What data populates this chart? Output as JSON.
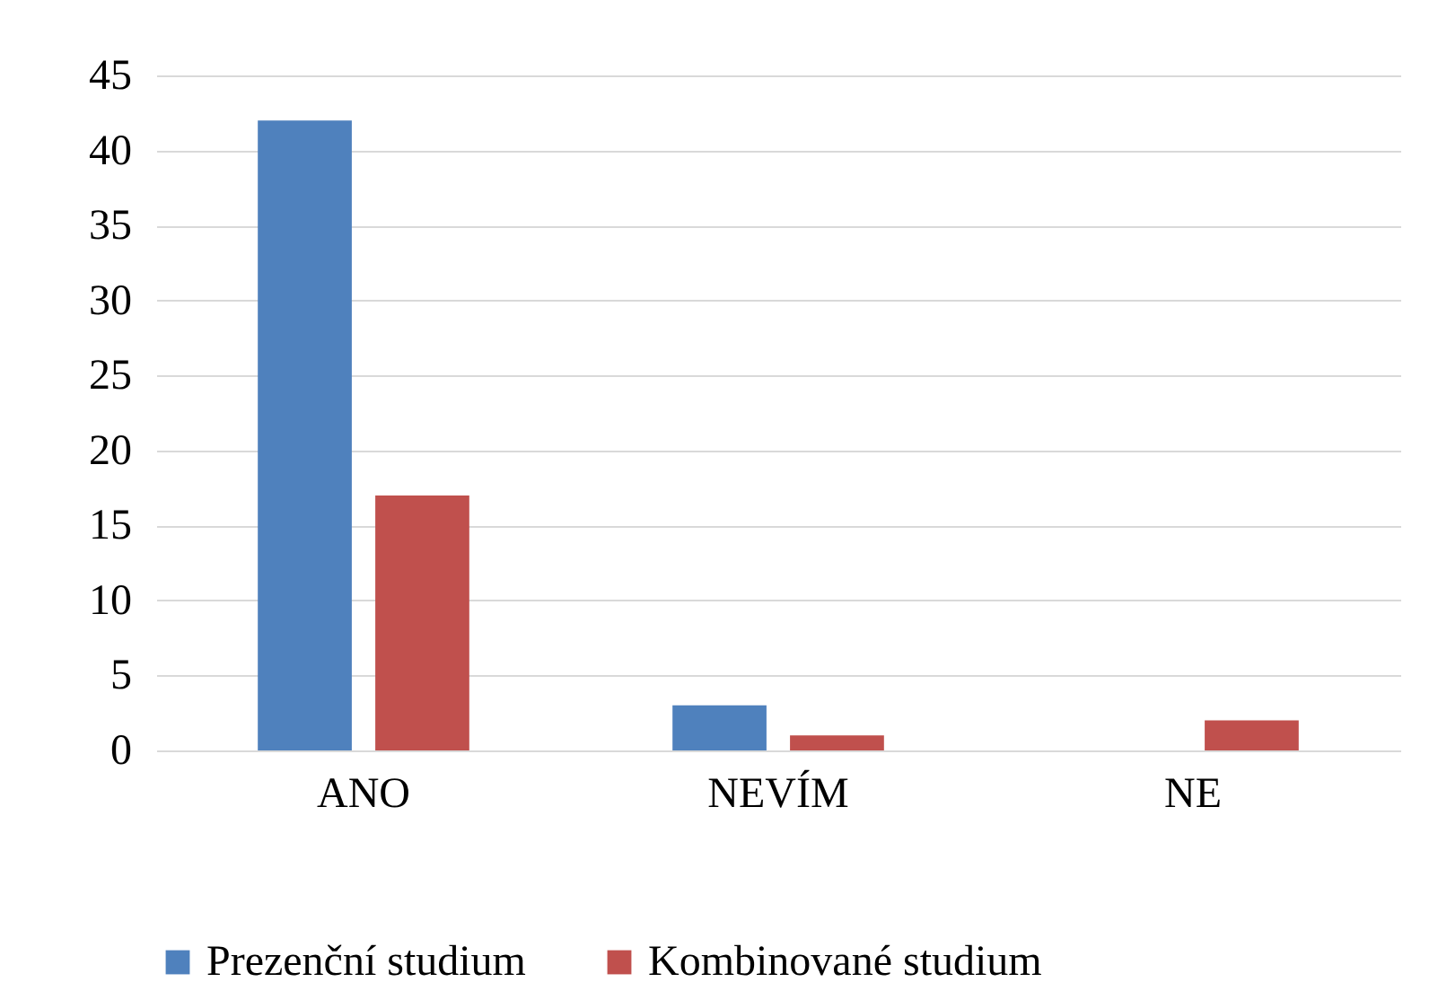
{
  "chart_data": {
    "type": "bar",
    "categories": [
      "ANO",
      "NEVÍM",
      "NE"
    ],
    "series": [
      {
        "name": "Prezenční studium",
        "color": "#4f81bd",
        "values": [
          42,
          3,
          0
        ]
      },
      {
        "name": "Kombinované studium",
        "color": "#c0504d",
        "values": [
          17,
          1,
          2
        ]
      }
    ],
    "ylim": [
      0,
      45
    ],
    "yticks": [
      0,
      5,
      10,
      15,
      20,
      25,
      30,
      35,
      40,
      45
    ],
    "grid": "y",
    "legend": "bottom"
  }
}
